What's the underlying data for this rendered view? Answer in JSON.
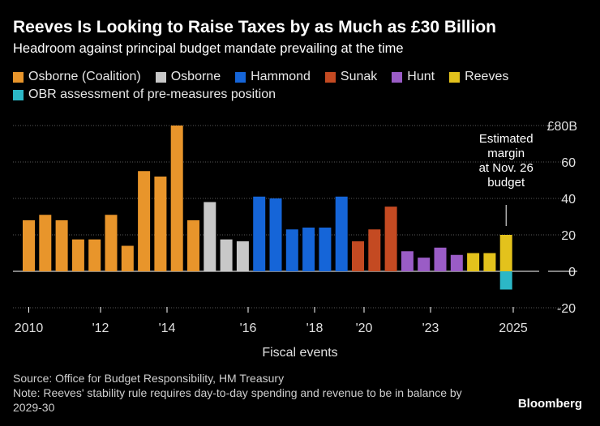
{
  "header": {
    "title": "Reeves Is Looking to Raise Taxes by as Much as £30 Billion",
    "subtitle": "Headroom against principal budget mandate prevailing at the time"
  },
  "legend": {
    "row1": [
      {
        "label": "Osborne (Coalition)",
        "color": "#E8952B"
      },
      {
        "label": "Osborne",
        "color": "#C8C8C8"
      },
      {
        "label": "Hammond",
        "color": "#1565D8"
      },
      {
        "label": "Sunak",
        "color": "#C44A22"
      },
      {
        "label": "Hunt",
        "color": "#9A5CC6"
      },
      {
        "label": "Reeves",
        "color": "#E3C21C"
      }
    ],
    "row2": [
      {
        "label": "OBR assessment of pre-measures position",
        "color": "#2CB7C6"
      }
    ]
  },
  "chart_data": {
    "type": "bar",
    "title": "Reeves Is Looking to Raise Taxes by as Much as £30 Billion",
    "xlabel": "Fiscal events",
    "ylabel": "",
    "unit_label": "£80B",
    "ylim": [
      -20,
      80
    ],
    "yticks": [
      -20,
      0,
      20,
      40,
      60
    ],
    "xtick_labels": [
      "2010",
      "'12",
      "'14",
      "'16",
      "'18",
      "'20",
      "'23",
      "2025"
    ],
    "annotation": [
      "Estimated",
      "margin",
      "at Nov. 26",
      "budget"
    ],
    "bars": [
      {
        "series": "Osborne (Coalition)",
        "value": 28
      },
      {
        "series": "Osborne (Coalition)",
        "value": 31
      },
      {
        "series": "Osborne (Coalition)",
        "value": 28
      },
      {
        "series": "Osborne (Coalition)",
        "value": 17.5
      },
      {
        "series": "Osborne (Coalition)",
        "value": 17.5
      },
      {
        "series": "Osborne (Coalition)",
        "value": 31
      },
      {
        "series": "Osborne (Coalition)",
        "value": 14
      },
      {
        "series": "Osborne (Coalition)",
        "value": 55
      },
      {
        "series": "Osborne (Coalition)",
        "value": 52
      },
      {
        "series": "Osborne (Coalition)",
        "value": 80
      },
      {
        "series": "Osborne (Coalition)",
        "value": 28
      },
      {
        "series": "Osborne",
        "value": 38
      },
      {
        "series": "Osborne",
        "value": 17.5
      },
      {
        "series": "Osborne",
        "value": 16.5
      },
      {
        "series": "Hammond",
        "value": 41
      },
      {
        "series": "Hammond",
        "value": 40
      },
      {
        "series": "Hammond",
        "value": 23
      },
      {
        "series": "Hammond",
        "value": 24
      },
      {
        "series": "Hammond",
        "value": 24
      },
      {
        "series": "Hammond",
        "value": 41
      },
      {
        "series": "Sunak",
        "value": 16.5
      },
      {
        "series": "Sunak",
        "value": 23
      },
      {
        "series": "Sunak",
        "value": 35.5
      },
      {
        "series": "Hunt",
        "value": 11
      },
      {
        "series": "Hunt",
        "value": 7.5
      },
      {
        "series": "Hunt",
        "value": 13
      },
      {
        "series": "Hunt",
        "value": 9
      },
      {
        "series": "Reeves",
        "value": 10
      },
      {
        "series": "Reeves",
        "value": 10
      },
      {
        "series": "Reeves",
        "value": 20
      },
      {
        "series": "OBR assessment of pre-measures position",
        "value": -10
      }
    ]
  },
  "footer": {
    "source": "Source: Office for Budget Responsibility, HM Treasury",
    "note": "Note: Reeves' stability rule requires day-to-day spending and revenue to be in balance by 2029-30",
    "brand": "Bloomberg"
  }
}
